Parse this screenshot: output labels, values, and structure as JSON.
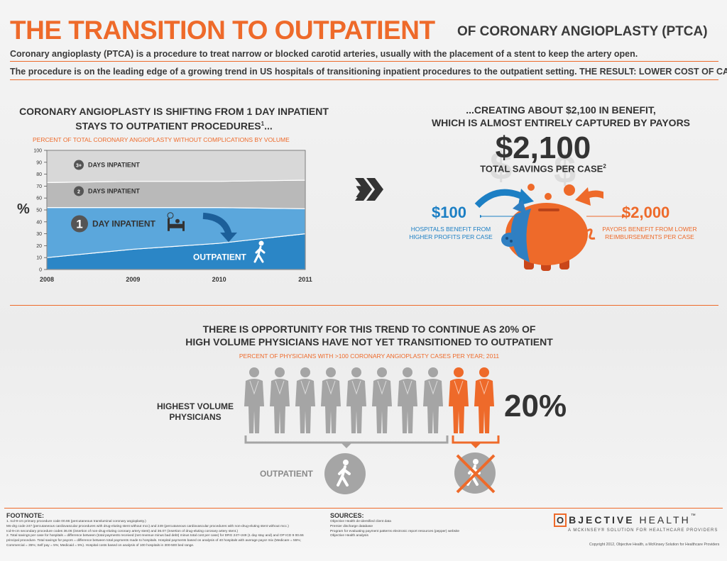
{
  "header": {
    "title_main": "THE TRANSITION TO OUTPATIENT",
    "title_sub": "OF CORONARY ANGIOPLASTY (PTCA)",
    "intro1": "Coronary angioplasty (PTCA) is a procedure to treat narrow or blocked carotid arteries, usually with the placement of a stent to keep the artery open.",
    "intro2": "The procedure is on the leading edge of a growing trend in US hospitals of transitioning inpatient procedures to the outpatient setting.  THE RESULT: LOWER COST OF CARE"
  },
  "left": {
    "heading_line1": "CORONARY ANGIOPLASTY IS SHIFTING FROM 1 DAY INPATIENT",
    "heading_line2": "STAYS TO OUTPATIENT PROCEDURES",
    "heading_sup": "1",
    "heading_tail": "...",
    "chart_subtitle": "PERCENT OF TOTAL CORONARY ANGIOPLASTY WITHOUT COMPLICATIONS BY VOLUME",
    "y_unit": "%"
  },
  "chart_data": {
    "type": "area",
    "x": [
      "2008",
      "2009",
      "2010",
      "2011"
    ],
    "x_tick_labels": [
      "2008",
      "2009",
      "2010",
      "2011"
    ],
    "y_ticks": [
      "0",
      "10",
      "20",
      "30",
      "40",
      "50",
      "60",
      "70",
      "80",
      "90",
      "100"
    ],
    "ylim": [
      0,
      100
    ],
    "stacked": true,
    "series": [
      {
        "name": "OUTPATIENT",
        "color": "#2b86c6",
        "values": [
          10,
          17,
          22,
          30
        ]
      },
      {
        "name": "DAY INPATIENT",
        "badge": "1",
        "color": "#5ba7dc",
        "values": [
          42,
          35,
          30,
          21
        ]
      },
      {
        "name": "DAYS INPATIENT",
        "badge": "2",
        "color": "#b9b9b9",
        "values": [
          21,
          22,
          22,
          24
        ]
      },
      {
        "name": "DAYS INPATIENT",
        "badge": "3+",
        "color": "#d8d8d8",
        "values": [
          27,
          26,
          26,
          25
        ]
      }
    ]
  },
  "right": {
    "heading_line1": "...CREATING ABOUT $2,100 IN BENEFIT,",
    "heading_line2": "WHICH IS ALMOST ENTIRELY CAPTURED BY PAYORS",
    "big_value": "$2,100",
    "savings_label": "TOTAL SAVINGS PER CASE",
    "savings_sup": "2",
    "hospital_amount": "$100",
    "hospital_text_line1": "HOSPITALS BENEFIT FROM",
    "hospital_text_line2": "HIGHER PROFITS PER CASE",
    "payor_amount": "$2,000",
    "payor_text_line1": "PAYORS BENEFIT FROM LOWER",
    "payor_text_line2": "REIMBURSEMENTS PER CASE",
    "hospital_color": "#1c7fc4",
    "payor_color": "#ee6a2a"
  },
  "middle": {
    "heading_line1": "THERE IS OPPORTUNITY FOR THIS TREND TO CONTINUE AS 20% OF",
    "heading_line2": "HIGH VOLUME PHYSICIANS HAVE NOT YET TRANSITIONED TO OUTPATIENT",
    "subtitle": "PERCENT OF PHYSICIANS WITH >100 CORONARY ANGIOPLASTY CASES PER YEAR; 2011",
    "label_line1": "HIGHEST VOLUME",
    "label_line2": "PHYSICIANS",
    "share_not_transitioned": 0.2,
    "physician_count": 10,
    "percent_text": "20%",
    "outpatient_label": "OUTPATIENT"
  },
  "footer": {
    "footnote_title": "FOOTNOTE:",
    "footnotes": [
      "1. Icd-9-cm primary procedure code 00.66 (percutaneous transluminal coronary angioplasty.)",
      "Ms-drg code 247 (percutaneous cardiovascular procedures with drug-eluting stent without mcc) and 249 (percutaneous cardiovascular procedures with non-drug-eluting stent without mcc.)",
      "Icd-9-cm secondary procedure codes 36.06 (insertion of non-drug-eluting coronary artery stent) and 36.07 (insertion of drug-eluting coronary artery stent.)",
      "2. Total savings per case for hospitals = difference between (total payments received (net revenue minus bad debt) minus total cost per case) for DRG 247+249 (1 day stay and) and OP ICD 9 00.66",
      "principal procedure. Total savings for payors = difference between total payments made to hospitals.  Hospital payments based on analysis of 40 hospitals with average payor mix (Medicare = 55%;",
      "Commercial = 35%; Self pay = 5%; Medicaid = 5%).  Hospital costs based on analysis of 100 hospitals in 300-500 bed range."
    ],
    "sources_title": "SOURCES:",
    "sources": [
      "Objective Health de-identified client data",
      "Premier discharge database",
      "Program for evaluating payment patterns electronic report resources (pepper) website",
      "Objective Health analysis"
    ],
    "logo_letter": "O",
    "logo_word1": "BJECTIVE",
    "logo_word2": "HEALTH",
    "logo_tm": "™",
    "logo_tagline": "A MCKINSEY® SOLUTION FOR HEALTHCARE PROVIDERS",
    "copyright": "Copyright 2012, Objective Health, a McKinsey Solution for Healthcare Providers",
    "accent_color": "#ee6a2a"
  }
}
